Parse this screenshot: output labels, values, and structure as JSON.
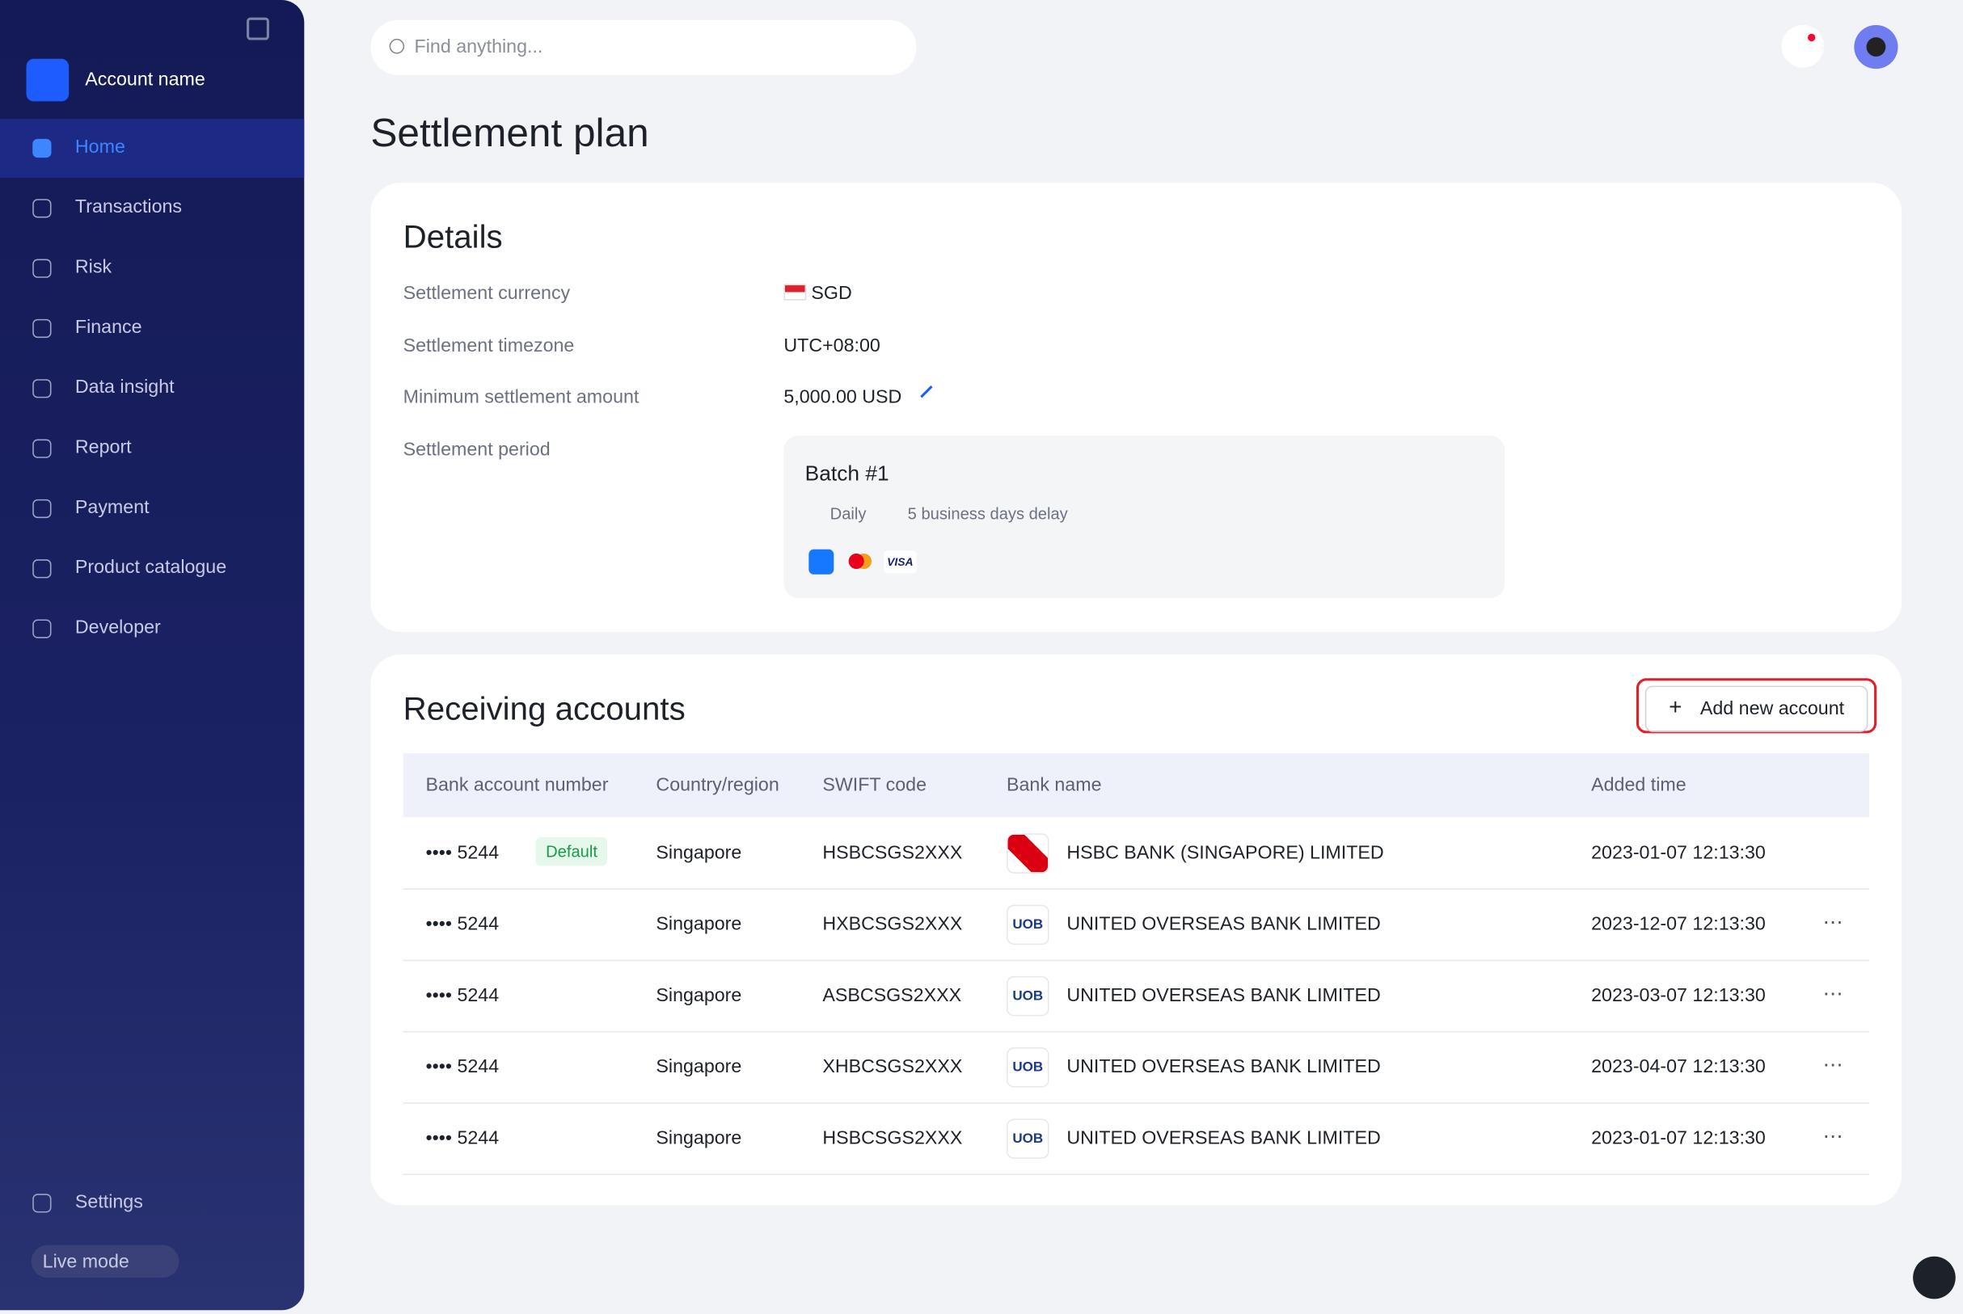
{
  "sidebar": {
    "account_name": "Account name",
    "nav": [
      "Home",
      "Transactions",
      "Risk",
      "Finance",
      "Data insight",
      "Report",
      "Payment",
      "Product catalogue",
      "Developer"
    ],
    "settings": "Settings",
    "live_mode": "Live mode"
  },
  "header": {
    "search_placeholder": "Find anything..."
  },
  "page": {
    "title": "Settlement plan"
  },
  "details": {
    "title": "Details",
    "rows": [
      {
        "label": "Settlement currency",
        "value": "SGD"
      },
      {
        "label": "Settlement timezone",
        "value": "UTC+08:00"
      },
      {
        "label": "Minimum settlement amount",
        "value": "5,000.00 USD"
      },
      {
        "label": "Settlement period"
      }
    ],
    "batch": {
      "name": "Batch #1",
      "frequency": "Daily",
      "delay": "5 business days delay",
      "card_logo": "VISA"
    }
  },
  "accounts": {
    "title": "Receiving accounts",
    "add_button": "Add new account",
    "columns": [
      "Bank account number",
      "Country/region",
      "SWIFT code",
      "Bank name",
      "Added time"
    ],
    "default_badge": "Default",
    "uob_logo": "UOB",
    "rows": [
      [
        "•••• 5244",
        "Singapore",
        "HSBCSGS2XXX",
        "HSBC BANK (SINGAPORE) LIMITED",
        "2023-01-07 12:13:30"
      ],
      [
        "•••• 5244",
        "Singapore",
        "HXBCSGS2XXX",
        "UNITED OVERSEAS BANK LIMITED",
        "2023-12-07 12:13:30"
      ],
      [
        "•••• 5244",
        "Singapore",
        "ASBCSGS2XXX",
        "UNITED OVERSEAS BANK LIMITED",
        "2023-03-07 12:13:30"
      ],
      [
        "•••• 5244",
        "Singapore",
        "XHBCSGS2XXX",
        "UNITED OVERSEAS BANK LIMITED",
        "2023-04-07 12:13:30"
      ],
      [
        "•••• 5244",
        "Singapore",
        "HSBCSGS2XXX",
        "UNITED OVERSEAS BANK LIMITED",
        "2023-01-07 12:13:30"
      ]
    ]
  }
}
